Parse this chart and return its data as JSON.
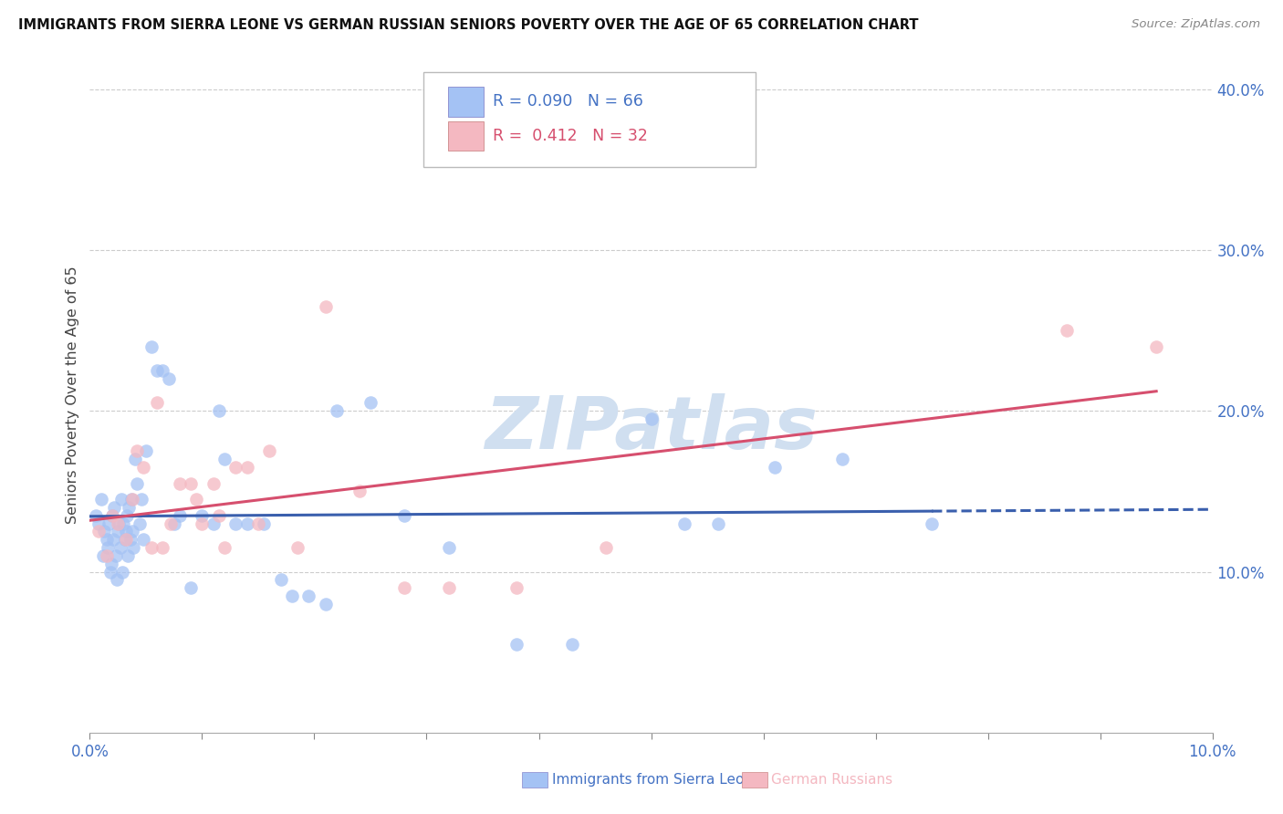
{
  "title": "IMMIGRANTS FROM SIERRA LEONE VS GERMAN RUSSIAN SENIORS POVERTY OVER THE AGE OF 65 CORRELATION CHART",
  "source": "Source: ZipAtlas.com",
  "ylabel": "Seniors Poverty Over the Age of 65",
  "xlim": [
    0.0,
    0.1
  ],
  "ylim": [
    0.0,
    0.42
  ],
  "legend_label1": "Immigrants from Sierra Leone",
  "legend_label2": "German Russians",
  "R1": "0.090",
  "N1": "66",
  "R2": "0.412",
  "N2": "32",
  "color1": "#a4c2f4",
  "color2": "#f4b8c1",
  "trendline1_solid_color": "#3a5fad",
  "trendline2_color": "#d64f6e",
  "watermark_color": "#d0dff0",
  "axis_color": "#4472c4",
  "grid_color": "#cccccc",
  "sierra_leone_x": [
    0.0005,
    0.0008,
    0.001,
    0.0012,
    0.0013,
    0.0015,
    0.0016,
    0.0017,
    0.0018,
    0.0019,
    0.002,
    0.0021,
    0.0022,
    0.0023,
    0.0024,
    0.0025,
    0.0026,
    0.0027,
    0.0028,
    0.0029,
    0.003,
    0.0031,
    0.0032,
    0.0033,
    0.0034,
    0.0035,
    0.0036,
    0.0037,
    0.0038,
    0.0039,
    0.004,
    0.0042,
    0.0044,
    0.0046,
    0.0048,
    0.005,
    0.0055,
    0.006,
    0.0065,
    0.007,
    0.0075,
    0.008,
    0.009,
    0.01,
    0.011,
    0.0115,
    0.012,
    0.013,
    0.014,
    0.0155,
    0.017,
    0.018,
    0.0195,
    0.021,
    0.022,
    0.025,
    0.028,
    0.032,
    0.038,
    0.043,
    0.05,
    0.053,
    0.056,
    0.061,
    0.067,
    0.075
  ],
  "sierra_leone_y": [
    0.135,
    0.13,
    0.145,
    0.11,
    0.125,
    0.12,
    0.115,
    0.13,
    0.1,
    0.105,
    0.135,
    0.12,
    0.14,
    0.11,
    0.095,
    0.125,
    0.13,
    0.115,
    0.145,
    0.1,
    0.13,
    0.12,
    0.125,
    0.135,
    0.11,
    0.14,
    0.12,
    0.145,
    0.125,
    0.115,
    0.17,
    0.155,
    0.13,
    0.145,
    0.12,
    0.175,
    0.24,
    0.225,
    0.225,
    0.22,
    0.13,
    0.135,
    0.09,
    0.135,
    0.13,
    0.2,
    0.17,
    0.13,
    0.13,
    0.13,
    0.095,
    0.085,
    0.085,
    0.08,
    0.2,
    0.205,
    0.135,
    0.115,
    0.055,
    0.055,
    0.195,
    0.13,
    0.13,
    0.165,
    0.17,
    0.13
  ],
  "german_russian_x": [
    0.0008,
    0.0015,
    0.002,
    0.0025,
    0.0032,
    0.0038,
    0.0042,
    0.0048,
    0.0055,
    0.006,
    0.0065,
    0.0072,
    0.008,
    0.009,
    0.0095,
    0.01,
    0.011,
    0.0115,
    0.012,
    0.013,
    0.014,
    0.015,
    0.016,
    0.0185,
    0.021,
    0.024,
    0.028,
    0.032,
    0.038,
    0.046,
    0.087,
    0.095
  ],
  "german_russian_y": [
    0.125,
    0.11,
    0.135,
    0.13,
    0.12,
    0.145,
    0.175,
    0.165,
    0.115,
    0.205,
    0.115,
    0.13,
    0.155,
    0.155,
    0.145,
    0.13,
    0.155,
    0.135,
    0.115,
    0.165,
    0.165,
    0.13,
    0.175,
    0.115,
    0.265,
    0.15,
    0.09,
    0.09,
    0.09,
    0.115,
    0.25,
    0.24
  ]
}
